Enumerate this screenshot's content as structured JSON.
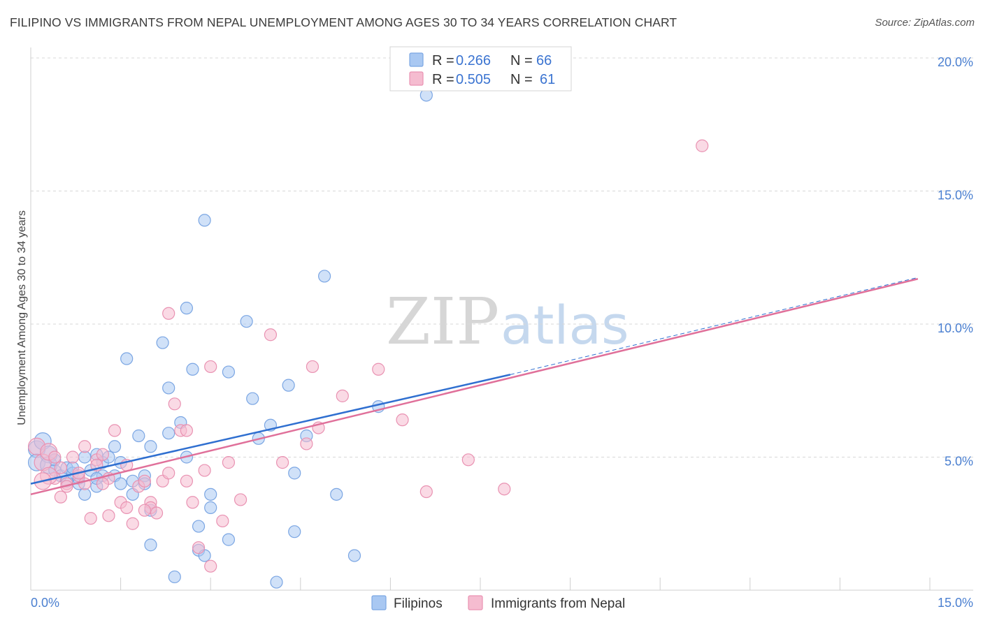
{
  "title": "FILIPINO VS IMMIGRANTS FROM NEPAL UNEMPLOYMENT AMONG AGES 30 TO 34 YEARS CORRELATION CHART",
  "source": "Source: ZipAtlas.com",
  "watermark": {
    "zip": "ZIP",
    "atlas": "atlas"
  },
  "colors": {
    "blue_fill": "#a9c8f2",
    "blue_stroke": "#7ba6e3",
    "blue_line": "#2f6fd0",
    "pink_fill": "#f5bcd0",
    "pink_stroke": "#e992b2",
    "pink_line": "#e0709a",
    "grid": "#d8d8d8",
    "axis_text": "#4a7fd0"
  },
  "legend": {
    "blue": {
      "r_label": "R =",
      "r_value": "0.266",
      "n_label": "N =",
      "n_value": "66"
    },
    "pink": {
      "r_label": "R =",
      "r_value": "0.505",
      "n_label": "N =",
      "n_value": "61"
    }
  },
  "bottom_legend": {
    "blue": "Filipinos",
    "pink": "Immigrants from Nepal"
  },
  "chart_data": {
    "type": "scatter",
    "title": "FILIPINO VS IMMIGRANTS FROM NEPAL UNEMPLOYMENT AMONG AGES 30 TO 34 YEARS CORRELATION CHART",
    "xlabel": "",
    "ylabel": "Unemployment Among Ages 30 to 34 years",
    "xlim": [
      0,
      15
    ],
    "ylim": [
      0,
      20
    ],
    "x_tick_labels": [
      "0.0%",
      "15.0%"
    ],
    "y_ticks": [
      5,
      10,
      15,
      20
    ],
    "y_tick_labels": [
      "5.0%",
      "10.0%",
      "15.0%",
      "20.0%"
    ],
    "series": [
      {
        "name": "Filipinos",
        "color": "blue",
        "trend": {
          "x0": 0,
          "y0": 4.0,
          "x1": 8.0,
          "y1": 8.1,
          "dashed_to_x": 14.8,
          "dashed_to_y": 11.75
        },
        "points": [
          [
            0.1,
            5.3
          ],
          [
            0.1,
            4.8
          ],
          [
            0.2,
            5.6
          ],
          [
            0.3,
            5.1
          ],
          [
            0.3,
            4.7
          ],
          [
            0.4,
            4.5
          ],
          [
            0.4,
            4.9
          ],
          [
            0.5,
            4.3
          ],
          [
            0.6,
            4.6
          ],
          [
            0.6,
            4.1
          ],
          [
            0.7,
            4.4
          ],
          [
            0.8,
            4.2
          ],
          [
            0.8,
            4.0
          ],
          [
            0.9,
            3.6
          ],
          [
            0.9,
            5.0
          ],
          [
            1.0,
            4.5
          ],
          [
            1.1,
            5.1
          ],
          [
            1.1,
            3.9
          ],
          [
            1.2,
            4.8
          ],
          [
            1.2,
            4.3
          ],
          [
            1.3,
            5.0
          ],
          [
            1.4,
            4.3
          ],
          [
            1.4,
            5.4
          ],
          [
            1.5,
            4.0
          ],
          [
            1.5,
            4.8
          ],
          [
            1.6,
            8.7
          ],
          [
            1.7,
            4.1
          ],
          [
            1.7,
            3.6
          ],
          [
            1.8,
            5.8
          ],
          [
            1.9,
            4.3
          ],
          [
            1.9,
            4.0
          ],
          [
            2.0,
            1.7
          ],
          [
            2.0,
            3.0
          ],
          [
            2.0,
            5.4
          ],
          [
            2.2,
            9.3
          ],
          [
            2.3,
            7.6
          ],
          [
            2.3,
            5.9
          ],
          [
            2.4,
            0.5
          ],
          [
            2.5,
            6.3
          ],
          [
            2.6,
            10.6
          ],
          [
            2.6,
            5.0
          ],
          [
            2.7,
            8.3
          ],
          [
            2.8,
            2.4
          ],
          [
            2.8,
            1.5
          ],
          [
            2.9,
            1.3
          ],
          [
            2.9,
            13.9
          ],
          [
            3.0,
            3.1
          ],
          [
            3.0,
            3.6
          ],
          [
            3.3,
            1.9
          ],
          [
            3.3,
            8.2
          ],
          [
            3.6,
            10.1
          ],
          [
            3.7,
            7.2
          ],
          [
            3.8,
            5.7
          ],
          [
            4.0,
            6.2
          ],
          [
            4.1,
            0.3
          ],
          [
            4.3,
            7.7
          ],
          [
            4.4,
            2.2
          ],
          [
            4.4,
            4.4
          ],
          [
            4.6,
            5.8
          ],
          [
            4.9,
            11.8
          ],
          [
            5.1,
            3.6
          ],
          [
            5.4,
            1.3
          ],
          [
            5.8,
            6.9
          ],
          [
            6.6,
            18.6
          ],
          [
            1.1,
            4.2
          ],
          [
            0.7,
            4.6
          ]
        ]
      },
      {
        "name": "Immigrants from Nepal",
        "color": "pink",
        "trend": {
          "x0": 0,
          "y0": 3.6,
          "x1": 14.8,
          "y1": 11.7
        },
        "points": [
          [
            0.1,
            5.4
          ],
          [
            0.2,
            4.8
          ],
          [
            0.3,
            5.2
          ],
          [
            0.4,
            4.2
          ],
          [
            0.5,
            4.6
          ],
          [
            0.5,
            3.5
          ],
          [
            0.6,
            4.0
          ],
          [
            0.7,
            5.0
          ],
          [
            0.8,
            4.3
          ],
          [
            0.9,
            4.0
          ],
          [
            0.9,
            5.4
          ],
          [
            1.0,
            2.7
          ],
          [
            1.1,
            4.9
          ],
          [
            1.2,
            5.1
          ],
          [
            1.3,
            4.2
          ],
          [
            1.3,
            2.8
          ],
          [
            1.4,
            6.0
          ],
          [
            1.5,
            3.3
          ],
          [
            1.6,
            4.7
          ],
          [
            1.6,
            3.1
          ],
          [
            1.7,
            2.5
          ],
          [
            1.8,
            3.9
          ],
          [
            1.9,
            4.1
          ],
          [
            2.0,
            3.3
          ],
          [
            2.0,
            3.1
          ],
          [
            2.2,
            4.1
          ],
          [
            2.3,
            10.4
          ],
          [
            2.3,
            4.4
          ],
          [
            2.4,
            7.0
          ],
          [
            2.5,
            6.0
          ],
          [
            2.6,
            4.1
          ],
          [
            2.6,
            6.0
          ],
          [
            2.7,
            3.3
          ],
          [
            2.8,
            1.6
          ],
          [
            2.9,
            4.5
          ],
          [
            3.0,
            0.9
          ],
          [
            3.0,
            8.4
          ],
          [
            3.2,
            2.6
          ],
          [
            3.3,
            4.8
          ],
          [
            3.5,
            3.4
          ],
          [
            4.0,
            9.6
          ],
          [
            4.2,
            4.8
          ],
          [
            4.6,
            5.5
          ],
          [
            4.7,
            8.4
          ],
          [
            4.8,
            6.1
          ],
          [
            5.2,
            7.3
          ],
          [
            5.8,
            8.3
          ],
          [
            6.2,
            6.4
          ],
          [
            6.6,
            3.7
          ],
          [
            7.3,
            4.9
          ],
          [
            7.9,
            3.8
          ],
          [
            11.2,
            16.7
          ],
          [
            0.3,
            4.3
          ],
          [
            0.8,
            4.4
          ],
          [
            1.1,
            4.7
          ],
          [
            0.2,
            4.1
          ],
          [
            0.6,
            3.9
          ],
          [
            1.9,
            3.0
          ],
          [
            2.1,
            2.9
          ],
          [
            1.2,
            4.0
          ],
          [
            0.4,
            5.0
          ]
        ]
      }
    ]
  }
}
